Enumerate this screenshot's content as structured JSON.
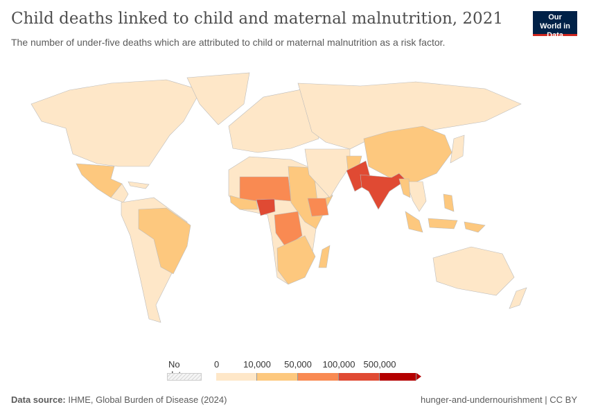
{
  "header": {
    "title": "Child deaths linked to child and maternal malnutrition, 2021",
    "subtitle": "The number of under-five deaths which are attributed to child or maternal malnutrition as a risk factor.",
    "logo_text": "Our World in Data"
  },
  "legend": {
    "no_data_label": "No data",
    "bins": [
      {
        "label": "0",
        "color": "#fee7c8"
      },
      {
        "label": "10,000",
        "color": "#fdc87e"
      },
      {
        "label": "50,000",
        "color": "#f98a52"
      },
      {
        "label": "100,000",
        "color": "#e04a33"
      },
      {
        "label": "500,000",
        "color": "#b40000"
      }
    ]
  },
  "footer": {
    "source_label": "Data source:",
    "source_text": "IHME, Global Burden of Disease (2024)",
    "right_text": "hunger-and-undernourishment | CC BY"
  }
}
